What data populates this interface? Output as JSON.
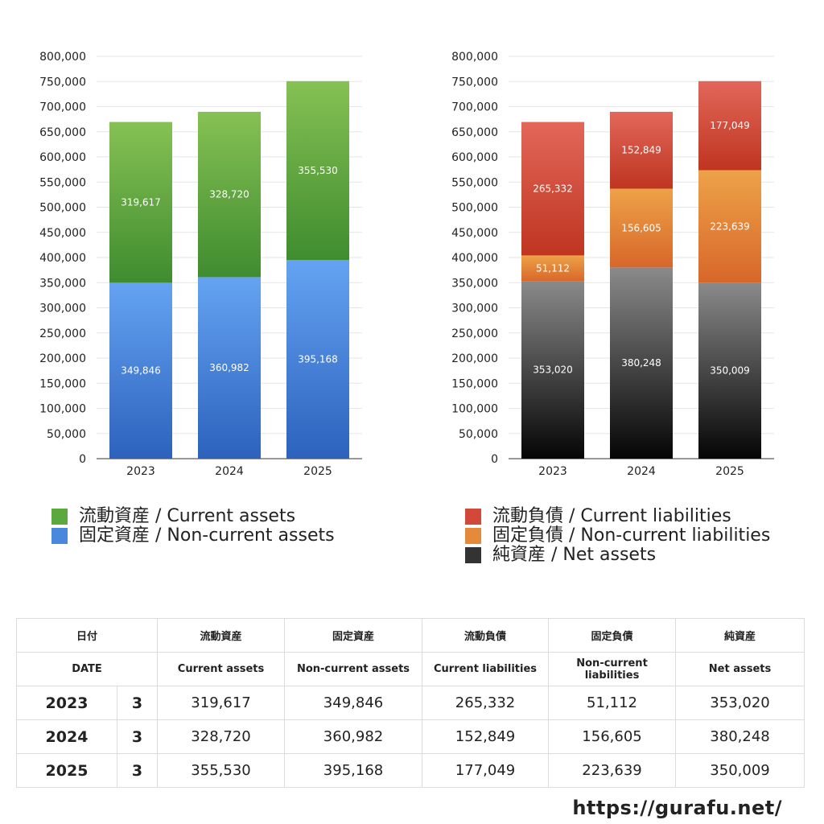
{
  "chart_data": [
    {
      "type": "bar",
      "stacked": true,
      "categories": [
        "2023",
        "2024",
        "2025"
      ],
      "ylim": [
        0,
        800000
      ],
      "yticks": [
        0,
        50000,
        100000,
        150000,
        200000,
        250000,
        300000,
        350000,
        400000,
        450000,
        500000,
        550000,
        600000,
        650000,
        700000,
        750000,
        800000
      ],
      "ytick_labels": [
        "0",
        "50,000",
        "100,000",
        "150,000",
        "200,000",
        "250,000",
        "300,000",
        "350,000",
        "400,000",
        "450,000",
        "500,000",
        "550,000",
        "600,000",
        "650,000",
        "700,000",
        "750,000",
        "800,000"
      ],
      "grid": true,
      "legend_position": "bottom",
      "series": [
        {
          "name": "固定資産 / Non-current assets",
          "values": [
            349846,
            360982,
            395168
          ],
          "labels": [
            "349,846",
            "360,982",
            "395,168"
          ],
          "color_top": "#65a3f2",
          "color_bottom": "#2c62bd"
        },
        {
          "name": "流動資産 / Current assets",
          "values": [
            319617,
            328720,
            355530
          ],
          "labels": [
            "319,617",
            "328,720",
            "355,530"
          ],
          "color_top": "#86c154",
          "color_bottom": "#3f8c2f"
        }
      ],
      "legend": [
        {
          "name": "流動資産 / Current assets",
          "color": "#5aa83e"
        },
        {
          "name": "固定資産 / Non-current assets",
          "color": "#4a88dd"
        }
      ]
    },
    {
      "type": "bar",
      "stacked": true,
      "categories": [
        "2023",
        "2024",
        "2025"
      ],
      "ylim": [
        0,
        800000
      ],
      "yticks": [
        0,
        50000,
        100000,
        150000,
        200000,
        250000,
        300000,
        350000,
        400000,
        450000,
        500000,
        550000,
        600000,
        650000,
        700000,
        750000,
        800000
      ],
      "ytick_labels": [
        "0",
        "50,000",
        "100,000",
        "150,000",
        "200,000",
        "250,000",
        "300,000",
        "350,000",
        "400,000",
        "450,000",
        "500,000",
        "550,000",
        "600,000",
        "650,000",
        "700,000",
        "750,000",
        "800,000"
      ],
      "grid": true,
      "legend_position": "bottom",
      "series": [
        {
          "name": "純資産 / Net assets",
          "values": [
            353020,
            380248,
            350009
          ],
          "labels": [
            "353,020",
            "380,248",
            "350,009"
          ],
          "color_top": "#8a8a8a",
          "color_bottom": "#050505"
        },
        {
          "name": "固定負債 / Non-current liabilities",
          "values": [
            51112,
            156605,
            223639
          ],
          "labels": [
            "51,112",
            "156,605",
            "223,639"
          ],
          "color_top": "#eda248",
          "color_bottom": "#d8672a"
        },
        {
          "name": "流動負債 / Current liabilities",
          "values": [
            265332,
            152849,
            177049
          ],
          "labels": [
            "265,332",
            "152,849",
            "177,049"
          ],
          "color_top": "#e2675a",
          "color_bottom": "#bf3520"
        }
      ],
      "legend": [
        {
          "name": "流動負債 / Current liabilities",
          "color": "#d2483a"
        },
        {
          "name": "固定負債 / Non-current liabilities",
          "color": "#e58a3a"
        },
        {
          "name": "純資産 / Net assets",
          "color": "#333333"
        }
      ]
    }
  ],
  "table": {
    "header_jp": [
      "日付",
      "流動資産",
      "固定資産",
      "流動負債",
      "固定負債",
      "純資産"
    ],
    "header_en": [
      "DATE",
      "Current assets",
      "Non-current assets",
      "Current liabilities",
      "Non-current liabilities",
      "Net assets"
    ],
    "rows": [
      {
        "year": "2023",
        "month": "3",
        "values": [
          "319,617",
          "349,846",
          "265,332",
          "51,112",
          "353,020"
        ]
      },
      {
        "year": "2024",
        "month": "3",
        "values": [
          "328,720",
          "360,982",
          "152,849",
          "156,605",
          "380,248"
        ]
      },
      {
        "year": "2025",
        "month": "3",
        "values": [
          "355,530",
          "395,168",
          "177,049",
          "223,639",
          "350,009"
        ]
      }
    ]
  },
  "footer": {
    "url": "https://gurafu.net/"
  }
}
